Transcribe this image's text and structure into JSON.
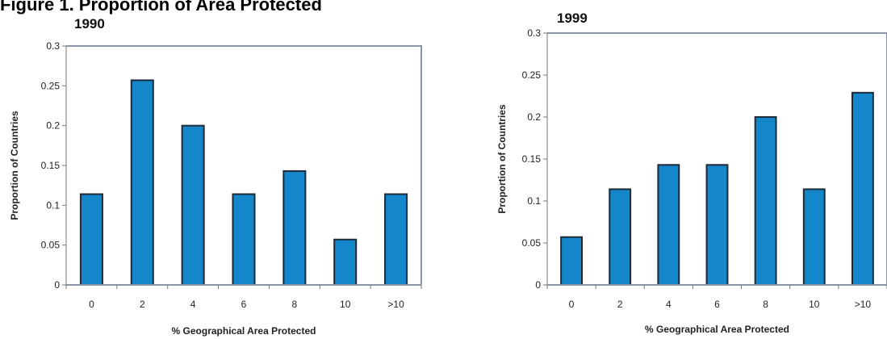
{
  "heading": "Figure 1. Proportion of Area Protected",
  "chart_data": [
    {
      "type": "bar",
      "title": "1990",
      "xlabel": "% Geographical Area Protected",
      "ylabel": "Proportion of Countries",
      "categories": [
        "0",
        "2",
        "4",
        "6",
        "8",
        "10",
        ">10"
      ],
      "values": [
        0.114,
        0.257,
        0.2,
        0.114,
        0.143,
        0.057,
        0.114
      ],
      "ylim": [
        0,
        0.3
      ],
      "yticks": [
        "0",
        "0.05",
        "0.1",
        "0.15",
        "0.2",
        "0.25",
        "0.3"
      ],
      "color": "#1387c9",
      "grid": false
    },
    {
      "type": "bar",
      "title": "1999",
      "xlabel": "% Geographical Area Protected",
      "ylabel": "Proportion of Countries",
      "categories": [
        "0",
        "2",
        "4",
        "6",
        "8",
        "10",
        ">10"
      ],
      "values": [
        0.057,
        0.114,
        0.143,
        0.143,
        0.2,
        0.114,
        0.229
      ],
      "ylim": [
        0,
        0.3
      ],
      "yticks": [
        "0",
        "0.05",
        "0.1",
        "0.15",
        "0.2",
        "0.25",
        "0.3"
      ],
      "color": "#1387c9",
      "grid": false
    }
  ]
}
